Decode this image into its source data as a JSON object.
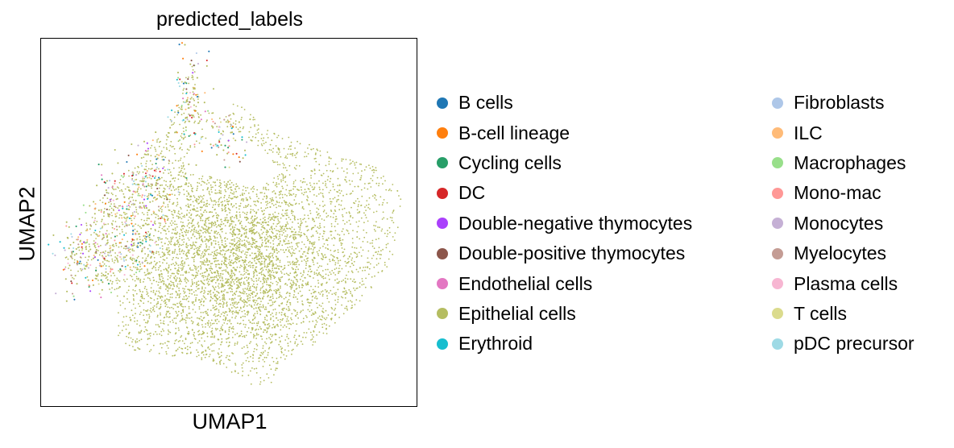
{
  "chart_data": {
    "type": "scatter",
    "title": "predicted_labels",
    "xlabel": "UMAP1",
    "ylabel": "UMAP2",
    "xticks": [],
    "yticks": [],
    "grid": false,
    "legend_position": "right",
    "dominant_category": "Epithelial cells",
    "categories": [
      {
        "name": "B cells",
        "color": "#1f77b4"
      },
      {
        "name": "B-cell lineage",
        "color": "#ff7f0e"
      },
      {
        "name": "Cycling cells",
        "color": "#279e68"
      },
      {
        "name": "DC",
        "color": "#d62728"
      },
      {
        "name": "Double-negative thymocytes",
        "color": "#aa40fc"
      },
      {
        "name": "Double-positive thymocytes",
        "color": "#8c564b"
      },
      {
        "name": "Endothelial cells",
        "color": "#e377c2"
      },
      {
        "name": "Epithelial cells",
        "color": "#b5bd61"
      },
      {
        "name": "Erythroid",
        "color": "#17becf"
      },
      {
        "name": "Fibroblasts",
        "color": "#aec7e8"
      },
      {
        "name": "ILC",
        "color": "#ffbb78"
      },
      {
        "name": "Macrophages",
        "color": "#98df8a"
      },
      {
        "name": "Mono-mac",
        "color": "#ff9896"
      },
      {
        "name": "Monocytes",
        "color": "#c5b0d5"
      },
      {
        "name": "Myelocytes",
        "color": "#c49c94"
      },
      {
        "name": "Plasma cells",
        "color": "#f7b6d2"
      },
      {
        "name": "T cells",
        "color": "#dbdb8d"
      },
      {
        "name": "pDC precursor",
        "color": "#9edae5"
      }
    ]
  }
}
